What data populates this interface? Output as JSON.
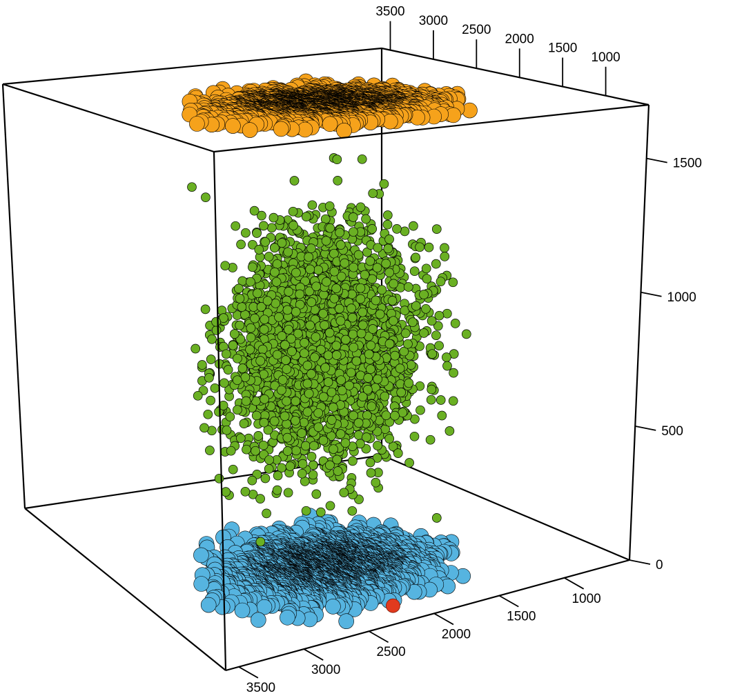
{
  "chart_data": {
    "type": "scatter3d",
    "title": "",
    "xlabel": "",
    "ylabel": "",
    "zlabel": "",
    "xlim": [
      500,
      3600
    ],
    "ylim": [
      500,
      3600
    ],
    "zlim": [
      0,
      1700
    ],
    "box": true,
    "grid": false,
    "axes": {
      "front_depth": {
        "ticks": [
          1000,
          1500,
          2000,
          2500,
          3000,
          3500
        ],
        "labels": [
          "1000",
          "1500",
          "2000",
          "2500",
          "3000",
          "3500"
        ]
      },
      "back_top": {
        "ticks": [
          1000,
          1500,
          2000,
          2500,
          3000,
          3500
        ],
        "labels": [
          "1000",
          "1500",
          "2000",
          "2500",
          "3000",
          "3500"
        ]
      },
      "vertical": {
        "ticks": [
          0,
          500,
          1000,
          1500
        ],
        "labels": [
          "0",
          "500",
          "1000",
          "1500"
        ]
      }
    },
    "series": [
      {
        "role": "points",
        "color": "#6ab023",
        "approx_count": 2600,
        "x_center": 1700,
        "x_spread": 500,
        "y_center": 2200,
        "y_spread": 550,
        "z_center": 830,
        "z_spread": 360
      },
      {
        "role": "projection-on-floor",
        "color": "#56b4e0",
        "z": 0
      },
      {
        "role": "projection-on-ceiling",
        "color": "#f6a21b",
        "z": 1700
      },
      {
        "role": "single-point",
        "color": "#e13a1e",
        "points": [
          [
            800,
            2150,
            0
          ]
        ]
      }
    ]
  }
}
